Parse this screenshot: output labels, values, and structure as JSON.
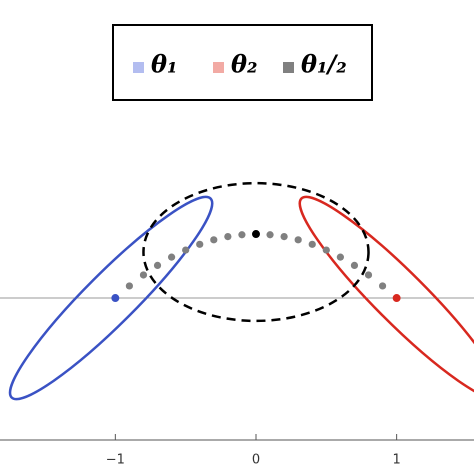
{
  "chart_data": {
    "type": "scatter",
    "xlim": [
      -1.82,
      1.55
    ],
    "ylim": [
      -1.01,
      2.12
    ],
    "xticks": [
      {
        "value": -1,
        "label": "−1"
      },
      0,
      1
    ],
    "zero_line": true,
    "series": [
      {
        "name": "θ₁",
        "color": "#3a52c4",
        "legend_color": "#b3bdf0",
        "x": [
          -1
        ],
        "values": [
          0
        ]
      },
      {
        "name": "θ₂",
        "color": "#d8281f",
        "legend_color": "#f2aaa4",
        "x": [
          1
        ],
        "values": [
          0
        ]
      },
      {
        "name": "θ₁/₂",
        "color": "#808080",
        "legend_color": "#808080",
        "x": [
          -0.9,
          -0.8,
          -0.7,
          -0.6,
          -0.5,
          -0.4,
          -0.3,
          -0.2,
          -0.1,
          0.1,
          0.2,
          0.3,
          0.4,
          0.5,
          0.6,
          0.7,
          0.8,
          0.9
        ],
        "values": [
          0.086,
          0.164,
          0.232,
          0.291,
          0.341,
          0.382,
          0.414,
          0.437,
          0.45,
          0.45,
          0.437,
          0.414,
          0.382,
          0.341,
          0.291,
          0.232,
          0.164,
          0.086
        ]
      }
    ],
    "points": [
      {
        "x": 0,
        "y": 0.455,
        "color": "#000000"
      }
    ],
    "ellipses": [
      {
        "cx": -1.03,
        "cy": 0,
        "rx": 1.0,
        "ry": 0.18,
        "angle": 45,
        "color": "#3a52c4",
        "dashed": false
      },
      {
        "cx": 1.03,
        "cy": 0,
        "rx": 1.0,
        "ry": 0.18,
        "angle": -45,
        "color": "#d8281f",
        "dashed": false
      },
      {
        "cx": 0,
        "cy": 0.327,
        "rx": 0.8,
        "ry": 0.49,
        "angle": 0,
        "color": "#000000",
        "dashed": true
      }
    ]
  }
}
